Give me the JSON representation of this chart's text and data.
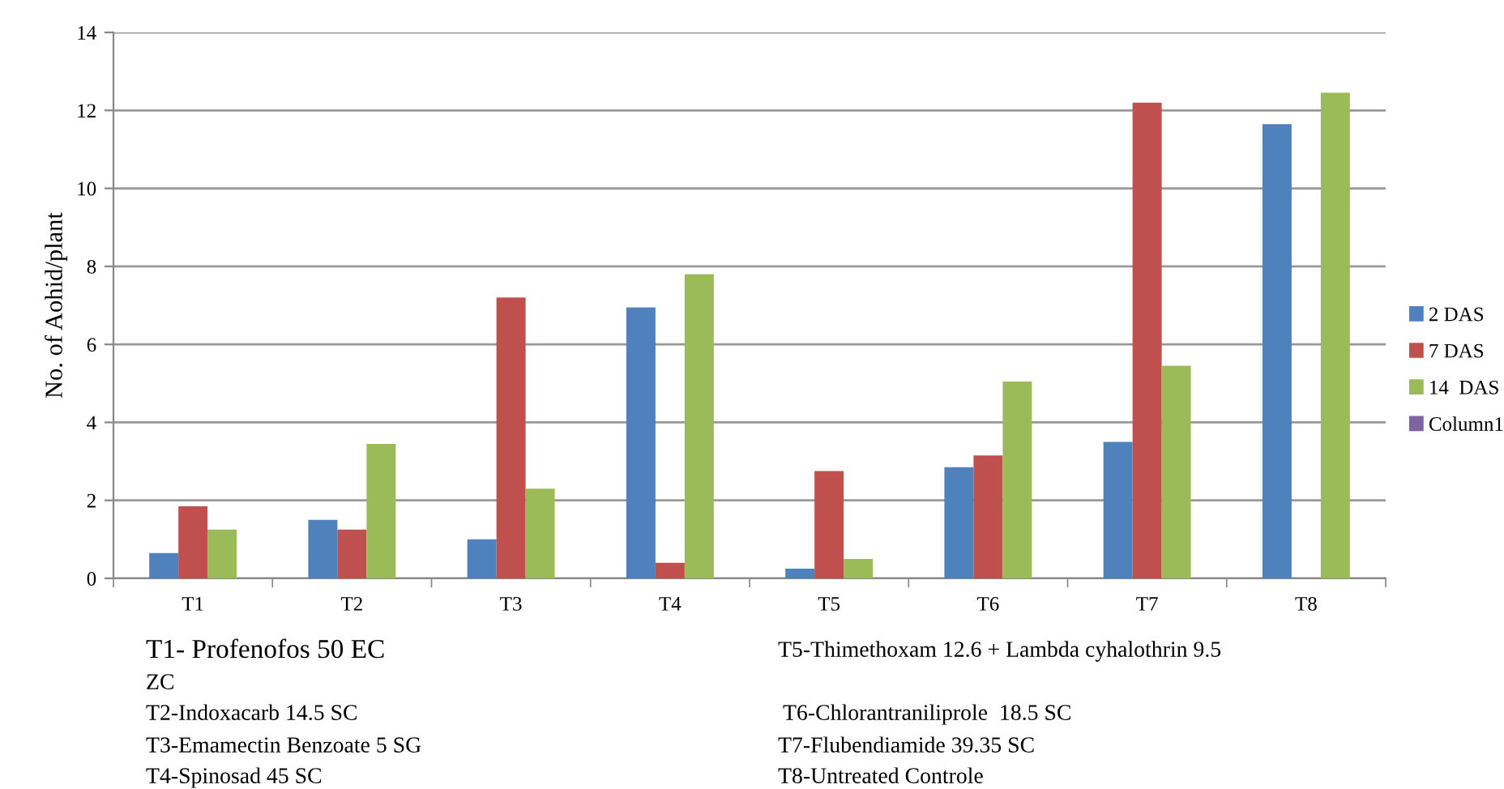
{
  "chart_data": {
    "type": "bar",
    "ylabel": "No. of Aohid/plant",
    "categories": [
      "T1",
      "T2",
      "T3",
      "T4",
      "T5",
      "T6",
      "T7",
      "T8"
    ],
    "series": [
      {
        "name": "2 DAS",
        "color": "#4f81bd",
        "values": [
          0.65,
          1.5,
          1.0,
          6.95,
          0.25,
          2.85,
          3.5,
          11.65
        ]
      },
      {
        "name": "7 DAS",
        "color": "#c0504d",
        "values": [
          1.85,
          1.25,
          7.2,
          0.4,
          2.75,
          3.15,
          12.2,
          null
        ]
      },
      {
        "name": "14  DAS",
        "color": "#9bbb59",
        "values": [
          1.25,
          3.45,
          2.3,
          7.8,
          0.5,
          5.05,
          5.45,
          12.45
        ]
      },
      {
        "name": "Column1",
        "color": "#8064a2",
        "values": [
          null,
          null,
          null,
          null,
          null,
          null,
          null,
          null
        ]
      }
    ],
    "ylim": [
      0,
      14
    ],
    "yticks": [
      0,
      2,
      4,
      6,
      8,
      10,
      12,
      14
    ],
    "grid": "y",
    "legend": "right",
    "annotations": [
      "T1- Profenofos 50 EC",
      "ZC",
      "T2-Indoxacarb 14.5 SC",
      "T3-Emamectin Benzoate 5 SG",
      "T4-Spinosad 45 SC",
      "T5-Thimethoxam 12.6 + Lambda cyhalothrin 9.5",
      "T6-Chlorantraniliprole  18.5 SC",
      "T7-Flubendiamide 39.35 SC",
      "T8-Untreated Controle"
    ]
  }
}
